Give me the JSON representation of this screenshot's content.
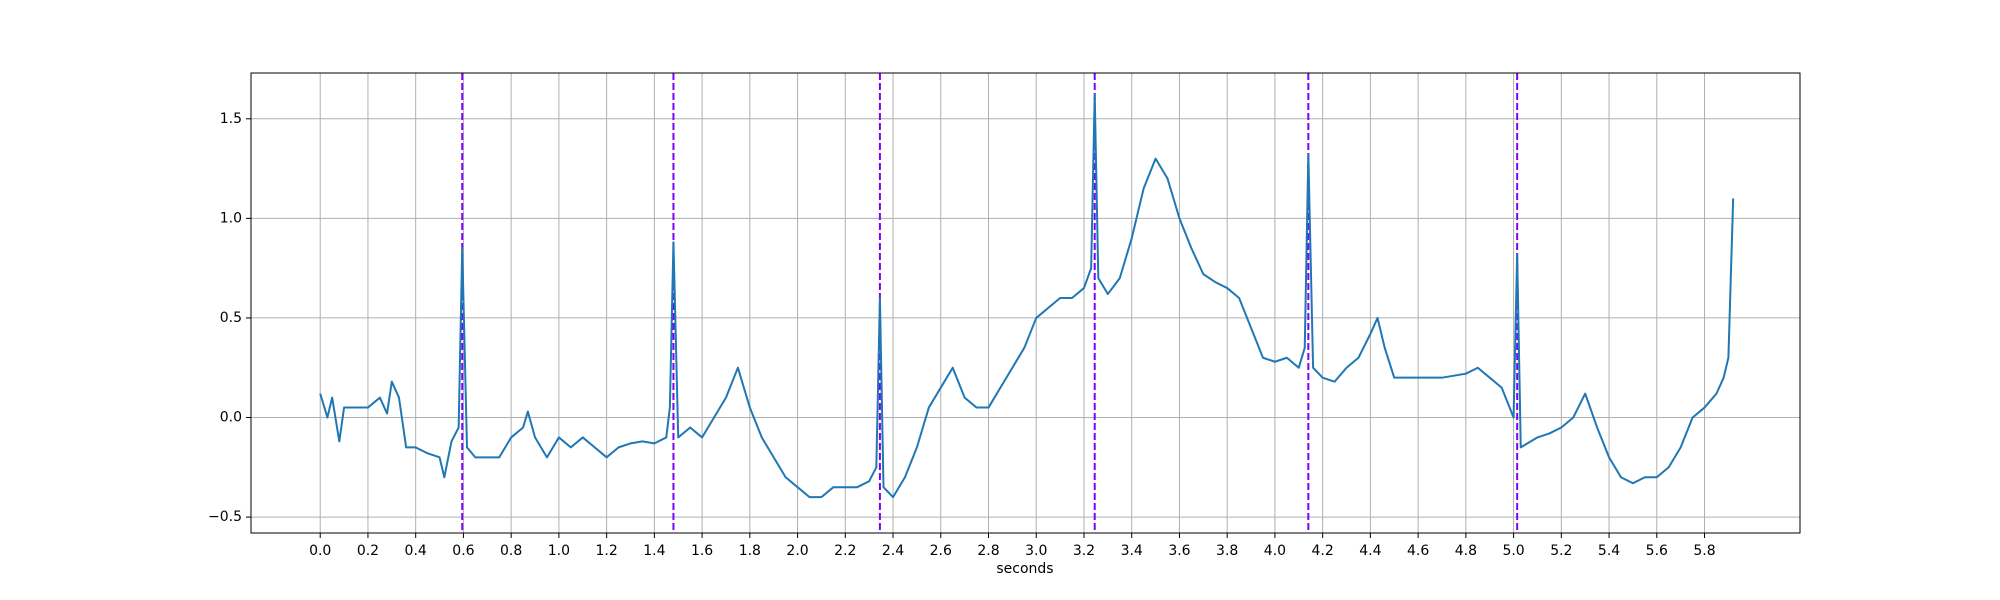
{
  "chart_data": {
    "type": "line",
    "x_label": "seconds",
    "x": [
      0.0,
      0.03,
      0.05,
      0.08,
      0.1,
      0.15,
      0.2,
      0.25,
      0.28,
      0.3,
      0.33,
      0.36,
      0.4,
      0.45,
      0.5,
      0.52,
      0.55,
      0.58,
      0.595,
      0.615,
      0.65,
      0.7,
      0.75,
      0.8,
      0.85,
      0.87,
      0.9,
      0.95,
      1.0,
      1.05,
      1.1,
      1.15,
      1.2,
      1.25,
      1.3,
      1.35,
      1.4,
      1.45,
      1.465,
      1.48,
      1.5,
      1.55,
      1.6,
      1.65,
      1.7,
      1.75,
      1.8,
      1.85,
      1.9,
      1.95,
      2.0,
      2.05,
      2.1,
      2.15,
      2.2,
      2.25,
      2.3,
      2.33,
      2.345,
      2.36,
      2.4,
      2.45,
      2.5,
      2.55,
      2.6,
      2.65,
      2.7,
      2.75,
      2.8,
      2.85,
      2.9,
      2.95,
      3.0,
      3.05,
      3.1,
      3.15,
      3.2,
      3.23,
      3.245,
      3.26,
      3.3,
      3.35,
      3.4,
      3.45,
      3.5,
      3.55,
      3.6,
      3.65,
      3.7,
      3.75,
      3.8,
      3.85,
      3.9,
      3.95,
      4.0,
      4.05,
      4.1,
      4.125,
      4.14,
      4.16,
      4.2,
      4.25,
      4.3,
      4.35,
      4.4,
      4.43,
      4.46,
      4.5,
      4.55,
      4.6,
      4.7,
      4.8,
      4.85,
      4.9,
      4.95,
      5.0,
      5.015,
      5.03,
      5.1,
      5.15,
      5.2,
      5.25,
      5.3,
      5.35,
      5.4,
      5.45,
      5.5,
      5.55,
      5.6,
      5.65,
      5.7,
      5.75,
      5.8,
      5.85,
      5.88,
      5.9,
      5.92
    ],
    "series": [
      {
        "color": "#1f77b4",
        "values": [
          0.12,
          0.0,
          0.1,
          -0.12,
          0.05,
          0.05,
          0.05,
          0.1,
          0.02,
          0.18,
          0.1,
          -0.15,
          -0.15,
          -0.18,
          -0.2,
          -0.3,
          -0.12,
          -0.05,
          0.85,
          -0.15,
          -0.2,
          -0.2,
          -0.2,
          -0.1,
          -0.05,
          0.03,
          -0.1,
          -0.2,
          -0.1,
          -0.15,
          -0.1,
          -0.15,
          -0.2,
          -0.15,
          -0.13,
          -0.12,
          -0.13,
          -0.1,
          0.05,
          0.88,
          -0.1,
          -0.05,
          -0.1,
          0.0,
          0.1,
          0.25,
          0.05,
          -0.1,
          -0.2,
          -0.3,
          -0.35,
          -0.4,
          -0.4,
          -0.35,
          -0.35,
          -0.35,
          -0.32,
          -0.25,
          0.6,
          -0.35,
          -0.4,
          -0.3,
          -0.15,
          0.05,
          0.15,
          0.25,
          0.1,
          0.05,
          0.05,
          0.15,
          0.25,
          0.35,
          0.5,
          0.55,
          0.6,
          0.6,
          0.65,
          0.75,
          1.62,
          0.7,
          0.62,
          0.7,
          0.9,
          1.15,
          1.3,
          1.2,
          1.0,
          0.85,
          0.72,
          0.68,
          0.65,
          0.6,
          0.45,
          0.3,
          0.28,
          0.3,
          0.25,
          0.35,
          1.32,
          0.25,
          0.2,
          0.18,
          0.25,
          0.3,
          0.42,
          0.5,
          0.35,
          0.2,
          0.2,
          0.2,
          0.2,
          0.22,
          0.25,
          0.2,
          0.15,
          0.0,
          0.82,
          -0.15,
          -0.1,
          -0.08,
          -0.05,
          0.0,
          0.12,
          -0.05,
          -0.2,
          -0.3,
          -0.33,
          -0.3,
          -0.3,
          -0.25,
          -0.15,
          0.0,
          0.05,
          0.12,
          0.2,
          0.3,
          1.1
        ]
      }
    ],
    "vlines": [
      0.595,
      1.48,
      2.345,
      3.245,
      4.14,
      5.015
    ],
    "vline_color": "#7f00ff",
    "xlim": [
      -0.29,
      6.2
    ],
    "ylim": [
      -0.58,
      1.73
    ],
    "xticks": [
      {
        "value": 0,
        "label": "0.0"
      },
      0.2,
      0.4,
      0.6,
      0.8,
      {
        "value": 1,
        "label": "1.0"
      },
      1.2,
      1.4,
      1.6,
      1.8,
      {
        "value": 2,
        "label": "2.0"
      },
      2.2,
      2.4,
      2.6,
      2.8,
      {
        "value": 3,
        "label": "3.0"
      },
      3.2,
      3.4,
      3.6,
      3.8,
      {
        "value": 4,
        "label": "4.0"
      },
      4.2,
      4.4,
      4.6,
      4.8,
      {
        "value": 5,
        "label": "5.0"
      },
      5.2,
      5.4,
      5.6,
      5.8
    ],
    "yticks": [
      {
        "value": -0.5,
        "label": "−0.5"
      },
      {
        "value": 0,
        "label": "0.0"
      },
      0.5,
      {
        "value": 1,
        "label": "1.0"
      },
      1.5
    ],
    "grid": true
  }
}
